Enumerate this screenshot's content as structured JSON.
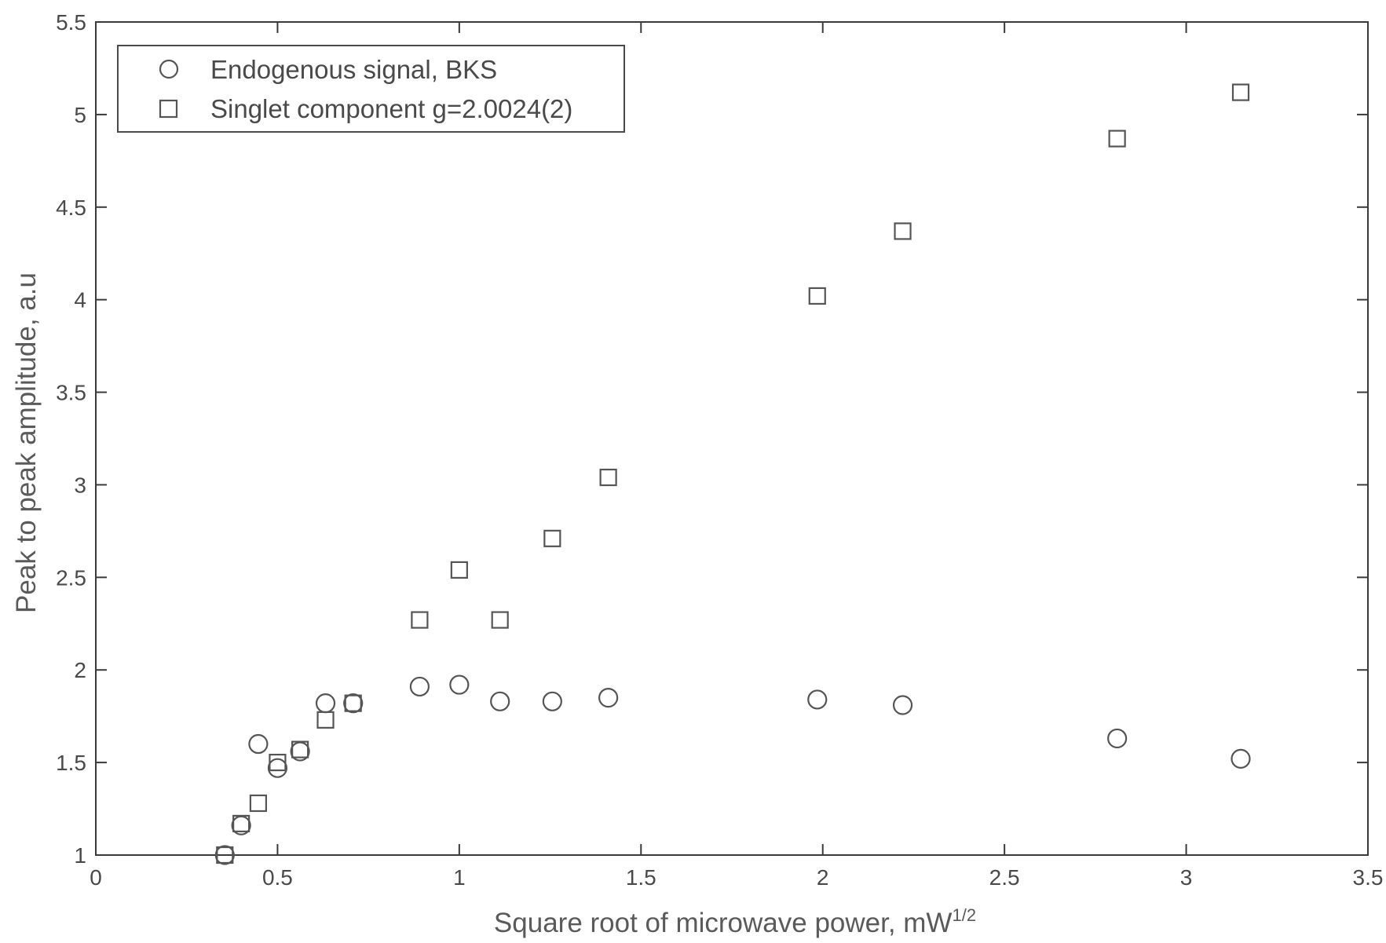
{
  "chart_data": {
    "type": "scatter",
    "title": "",
    "xlabel": "Square root of microwave power, mW",
    "xlabel_superscript": "1/2",
    "ylabel": "Peak to peak amplitude, a.u",
    "xlim": [
      0,
      3.5
    ],
    "ylim": [
      1,
      5.5
    ],
    "xticks": [
      0,
      0.5,
      1,
      1.5,
      2,
      2.5,
      3,
      3.5
    ],
    "xtick_labels": [
      "0",
      "0.5",
      "1",
      "1.5",
      "2",
      "2.5",
      "3",
      "3.5"
    ],
    "yticks": [
      1,
      1.5,
      2,
      2.5,
      3,
      3.5,
      4,
      4.5,
      5,
      5.5
    ],
    "ytick_labels": [
      "1",
      "1.5",
      "2",
      "2.5",
      "3",
      "3.5",
      "4",
      "4.5",
      "5",
      "5.5"
    ],
    "grid": false,
    "legend_position": "top-left",
    "marker_color": "#555555",
    "series": [
      {
        "name": "Endogenous signal, BKS",
        "marker": "circle",
        "x": [
          0.355,
          0.4,
          0.447,
          0.5,
          0.562,
          0.632,
          0.708,
          0.891,
          1.0,
          1.112,
          1.256,
          1.41,
          1.985,
          2.22,
          2.81,
          3.15
        ],
        "y": [
          1.0,
          1.16,
          1.6,
          1.47,
          1.56,
          1.82,
          1.82,
          1.91,
          1.92,
          1.83,
          1.83,
          1.85,
          1.84,
          1.81,
          1.63,
          1.52
        ]
      },
      {
        "name": "Singlet component g=2.0024(2)",
        "marker": "square",
        "x": [
          0.355,
          0.4,
          0.447,
          0.5,
          0.562,
          0.632,
          0.708,
          0.891,
          1.0,
          1.112,
          1.256,
          1.41,
          1.985,
          2.22,
          2.81,
          3.15
        ],
        "y": [
          1.0,
          1.17,
          1.28,
          1.5,
          1.57,
          1.73,
          1.82,
          2.27,
          2.54,
          2.27,
          2.71,
          3.04,
          4.02,
          4.37,
          4.87,
          5.12
        ]
      }
    ]
  }
}
